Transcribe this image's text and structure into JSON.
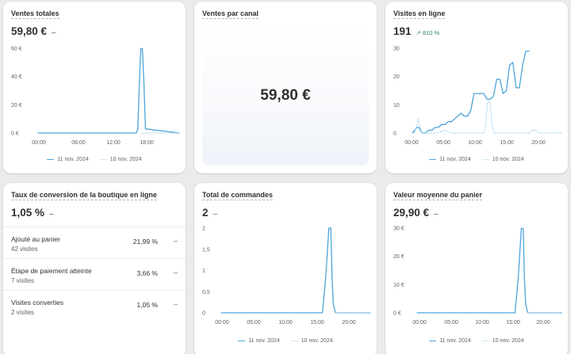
{
  "colors": {
    "current": "#4ba4d9",
    "previous": "#a6d2ec",
    "trend_up": "#29845a"
  },
  "legend": {
    "current": "11 nov. 2024",
    "previous": "10 nov. 2024"
  },
  "cards": {
    "ventes_totales": {
      "title": "Ventes totales",
      "value": "59,80 €",
      "change": "–"
    },
    "ventes_canal": {
      "title": "Ventes par canal",
      "value": "59,80 €"
    },
    "visites": {
      "title": "Visites en ligne",
      "value": "191",
      "trend_icon": "arrow-up-right-icon",
      "trend_arrow": "↗",
      "trend": "810 %"
    },
    "conversion": {
      "title": "Taux de conversion de la boutique en ligne",
      "value": "1,05 %",
      "change": "–",
      "rows": [
        {
          "label": "Ajouté au panier",
          "sub": "42 visites",
          "pct": "21,99 %",
          "change": "–"
        },
        {
          "label": "Étape de paiement atteinte",
          "sub": "7 visites",
          "pct": "3,66 %",
          "change": "–"
        },
        {
          "label": "Visites converties",
          "sub": "2 visites",
          "pct": "1,05 %",
          "change": "–"
        }
      ]
    },
    "commandes": {
      "title": "Total de commandes",
      "value": "2",
      "change": "–"
    },
    "panier": {
      "title": "Valeur moyenne du panier",
      "value": "29,90 €",
      "change": "–"
    }
  },
  "chart_data": [
    {
      "id": "ventes_totales",
      "type": "line",
      "ylabels": [
        "60 €",
        "40 €",
        "20 €",
        "0 €"
      ],
      "ylim": [
        0,
        60
      ],
      "xlabels": [
        "00:00",
        "06:00",
        "12:00",
        "18:00"
      ],
      "xlim": [
        0,
        23
      ],
      "grid": false,
      "series": [
        {
          "name": "11 nov. 2024",
          "style": "solid",
          "x": [
            0,
            16,
            16.25,
            16.5,
            16.75,
            17,
            17.25,
            17.5,
            23
          ],
          "y": [
            0,
            0,
            3,
            35,
            59.8,
            59.8,
            35,
            3,
            0
          ]
        },
        {
          "name": "10 nov. 2024",
          "style": "dotted",
          "x": [
            17,
            23
          ],
          "y": [
            0,
            0
          ]
        }
      ]
    },
    {
      "id": "visites",
      "type": "line",
      "ylabels": [
        "30",
        "20",
        "10",
        "0"
      ],
      "ylim": [
        0,
        30
      ],
      "xlabels": [
        "00:00",
        "05:00",
        "10:00",
        "15:00",
        "20:00"
      ],
      "xlim": [
        0,
        23
      ],
      "grid": false,
      "series": [
        {
          "name": "11 nov. 2024",
          "style": "solid",
          "x": [
            0,
            0.7,
            1,
            1.5,
            2,
            2.5,
            3,
            3.5,
            4,
            4.5,
            5,
            5.5,
            6,
            6.5,
            7,
            7.5,
            8,
            8.5,
            9,
            9.5,
            10,
            10.5,
            11,
            11.5,
            12,
            12.5,
            13,
            13.5,
            14,
            14.5,
            15,
            15.5,
            16,
            16.5,
            17,
            17.5,
            18
          ],
          "y": [
            0,
            2,
            2,
            0,
            0,
            1,
            1,
            2,
            2,
            3,
            3,
            4,
            4,
            5,
            6,
            7,
            6,
            6,
            8,
            14,
            14,
            14,
            14,
            12,
            12,
            13,
            19,
            19,
            14,
            15,
            24,
            25,
            16,
            16,
            24,
            29,
            29
          ]
        },
        {
          "name": "10 nov. 2024",
          "style": "dotted",
          "x": [
            0,
            0.3,
            0.6,
            0.9,
            1.2,
            1.5,
            2,
            4,
            5,
            6,
            8,
            10,
            10.5,
            11,
            11.3,
            11.6,
            12,
            12.3,
            12.6,
            13,
            14,
            16,
            17.5,
            18,
            18.5,
            19,
            19.5,
            20,
            21,
            23
          ],
          "y": [
            0,
            0,
            2,
            5,
            2,
            0,
            0,
            0,
            1,
            0,
            0,
            0,
            0,
            0,
            3,
            11,
            11,
            3,
            0,
            0,
            0,
            0,
            0,
            0,
            1,
            1,
            0,
            0,
            0,
            0
          ]
        }
      ]
    },
    {
      "id": "commandes",
      "type": "line",
      "ylabels": [
        "2",
        "1,5",
        "1",
        "0,5",
        "0"
      ],
      "ylim": [
        0,
        2
      ],
      "xlabels": [
        "00:00",
        "05:00",
        "10:00",
        "15:00",
        "20:00"
      ],
      "xlim": [
        0,
        23
      ],
      "grid": false,
      "series": [
        {
          "name": "11 nov. 2024",
          "style": "solid",
          "x": [
            0,
            15.6,
            16.1,
            16.6,
            16.9,
            17.1,
            17.3,
            17.6,
            23
          ],
          "y": [
            0,
            0,
            0.8,
            2,
            2,
            0.8,
            0.2,
            0,
            0
          ]
        },
        {
          "name": "10 nov. 2024",
          "style": "dotted",
          "x": [
            17.6,
            23
          ],
          "y": [
            0,
            0
          ]
        }
      ]
    },
    {
      "id": "panier",
      "type": "line",
      "ylabels": [
        "30 €",
        "20 €",
        "10 €",
        "0 €"
      ],
      "ylim": [
        0,
        30
      ],
      "xlabels": [
        "00:00",
        "05:00",
        "10:00",
        "15:00",
        "20:00"
      ],
      "xlim": [
        0,
        23
      ],
      "grid": false,
      "series": [
        {
          "name": "11 nov. 2024",
          "style": "solid",
          "x": [
            0,
            15.6,
            16.1,
            16.6,
            16.9,
            17.1,
            17.3,
            17.6,
            23
          ],
          "y": [
            0,
            0,
            12,
            29.9,
            29.9,
            12,
            3,
            0,
            0
          ]
        },
        {
          "name": "10 nov. 2024",
          "style": "dotted",
          "x": [
            17.6,
            23
          ],
          "y": [
            0,
            0
          ]
        }
      ]
    }
  ]
}
